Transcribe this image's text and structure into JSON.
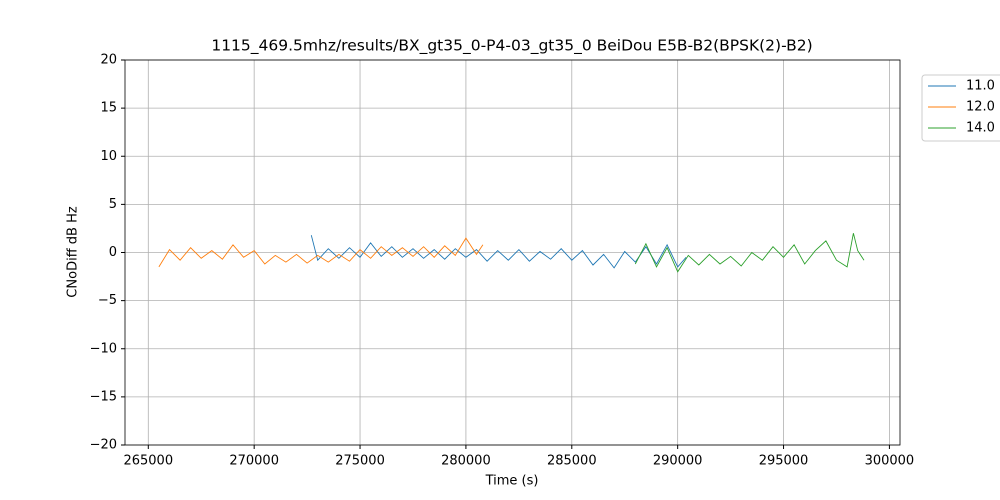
{
  "chart_data": {
    "type": "line",
    "title": "1115_469.5mhz/results/BX_gt35_0-P4-03_gt35_0 BeiDou E5B-B2(BPSK(2)-B2)",
    "x_label": "Time (s)",
    "y_label": "CNoDiff dB Hz",
    "xlim": [
      263900,
      300500
    ],
    "ylim": [
      -20,
      20
    ],
    "xticks": [
      265000,
      270000,
      275000,
      280000,
      285000,
      290000,
      295000,
      300000
    ],
    "yticks": [
      {
        "value": -20,
        "label": "−20"
      },
      {
        "value": -15,
        "label": "−15"
      },
      {
        "value": -10,
        "label": "−10"
      },
      {
        "value": -5,
        "label": "−5"
      },
      0,
      5,
      10,
      15,
      20
    ],
    "grid": true,
    "legend": "outside-upper-right",
    "series": [
      {
        "name": "11.0",
        "color": "#1f77b4",
        "x": [
          272700,
          273000,
          273500,
          274000,
          274500,
          275000,
          275500,
          276000,
          276500,
          277000,
          277500,
          278000,
          278500,
          279000,
          279500,
          280000,
          280500,
          281000,
          281500,
          282000,
          282500,
          283000,
          283500,
          284000,
          284500,
          285000,
          285500,
          286000,
          286500,
          287000,
          287500,
          288000,
          288500,
          289000,
          289500,
          290000,
          290400
        ],
        "values": [
          1.8,
          -0.8,
          0.4,
          -0.6,
          0.5,
          -0.5,
          1.0,
          -0.4,
          0.6,
          -0.5,
          0.4,
          -0.6,
          0.3,
          -0.7,
          0.4,
          -0.5,
          0.3,
          -0.9,
          0.2,
          -0.8,
          0.3,
          -0.9,
          0.1,
          -0.7,
          0.4,
          -0.8,
          0.2,
          -1.3,
          -0.2,
          -1.6,
          0.1,
          -1.0,
          0.6,
          -1.2,
          0.8,
          -1.5,
          -0.5
        ]
      },
      {
        "name": "12.0",
        "color": "#ff7f0e",
        "x": [
          265500,
          266000,
          266500,
          267000,
          267500,
          268000,
          268500,
          269000,
          269500,
          270000,
          270500,
          271000,
          271500,
          272000,
          272500,
          273000,
          273500,
          274000,
          274500,
          275000,
          275500,
          276000,
          276500,
          277000,
          277500,
          278000,
          278500,
          279000,
          279500,
          280000,
          280500,
          280800
        ],
        "values": [
          -1.5,
          0.3,
          -0.8,
          0.5,
          -0.6,
          0.2,
          -0.7,
          0.8,
          -0.5,
          0.2,
          -1.2,
          -0.3,
          -1.0,
          -0.2,
          -1.1,
          -0.3,
          -1.0,
          -0.2,
          -0.9,
          0.3,
          -0.6,
          0.6,
          -0.3,
          0.5,
          -0.4,
          0.6,
          -0.5,
          0.7,
          -0.3,
          1.5,
          -0.2,
          0.8
        ]
      },
      {
        "name": "14.0",
        "color": "#2ca02c",
        "x": [
          288000,
          288500,
          289000,
          289500,
          290000,
          290500,
          291000,
          291500,
          292000,
          292500,
          293000,
          293500,
          294000,
          294500,
          295000,
          295500,
          296000,
          296500,
          297000,
          297500,
          298000,
          298300,
          298500,
          298800
        ],
        "values": [
          -1.2,
          0.9,
          -1.5,
          0.5,
          -2.0,
          -0.3,
          -1.3,
          -0.2,
          -1.2,
          -0.4,
          -1.4,
          0.0,
          -0.8,
          0.6,
          -0.5,
          0.8,
          -1.2,
          0.2,
          1.2,
          -0.8,
          -1.5,
          2.0,
          0.2,
          -0.8
        ]
      }
    ]
  }
}
